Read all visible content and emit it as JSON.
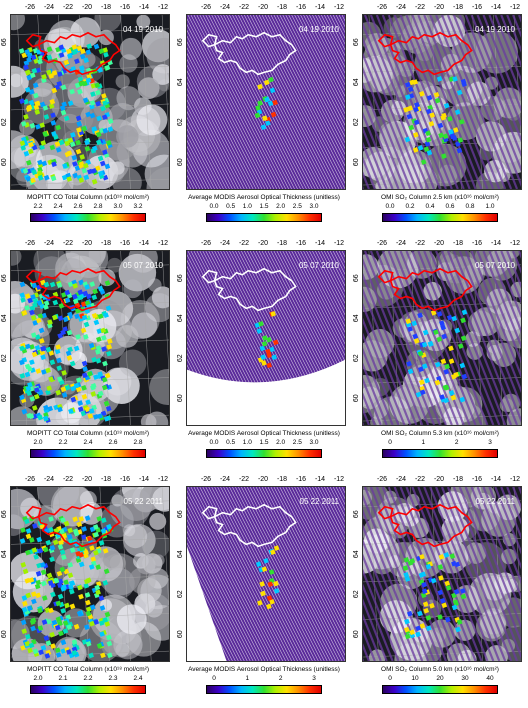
{
  "lon_ticks": [
    "-26",
    "-24",
    "-22",
    "-20",
    "-18",
    "-16",
    "-14",
    "-12"
  ],
  "lat_ticks": [
    "66",
    "64",
    "62",
    "60"
  ],
  "colors": {
    "coastline_mopitt": "#ff0000",
    "coastline_modis": "#ffffff",
    "coastline_omi": "#ff0000",
    "background_modis": "#5a2a9a",
    "background_cloud": "#c8ccd4"
  },
  "panels": [
    {
      "date": "04 19 2010",
      "product": "mopitt",
      "cb_title": "MOPITT CO Total Column (x10¹⁸ mol/cm²)",
      "cb_ticks": [
        "2.2",
        "2.4",
        "2.6",
        "2.8",
        "3.0",
        "3.2"
      ]
    },
    {
      "date": "04 19 2010",
      "product": "modis",
      "cb_title": "Average MODIS Aerosol Optical Thickness (unitless)",
      "cb_ticks": [
        "0.0",
        "0.5",
        "1.0",
        "1.5",
        "2.0",
        "2.5",
        "3.0"
      ]
    },
    {
      "date": "04 19 2010",
      "product": "omi",
      "cb_title": "OMI SO₂ Column 2.5 km (x10¹⁶ mol/cm²)",
      "cb_ticks": [
        "0.0",
        "0.2",
        "0.4",
        "0.6",
        "0.8",
        "1.0"
      ]
    },
    {
      "date": "05 07 2010",
      "product": "mopitt",
      "cb_title": "MOPITT CO Total Column (x10¹⁸ mol/cm²)",
      "cb_ticks": [
        "2.0",
        "2.2",
        "2.4",
        "2.6",
        "2.8"
      ]
    },
    {
      "date": "05 07 2010",
      "product": "modis",
      "cb_title": "Average MODIS Aerosol Optical Thickness (unitless)",
      "cb_ticks": [
        "0.0",
        "0.5",
        "1.0",
        "1.5",
        "2.0",
        "2.5",
        "3.0"
      ]
    },
    {
      "date": "05 07 2010",
      "product": "omi",
      "cb_title": "OMI SO₂ Column 5.3 km (x10¹⁶ mol/cm²)",
      "cb_ticks": [
        "0",
        "1",
        "2",
        "3"
      ]
    },
    {
      "date": "05 22 2011",
      "product": "mopitt",
      "cb_title": "MOPITT CO Total Column (x10¹⁸ mol/cm²)",
      "cb_ticks": [
        "2.0",
        "2.1",
        "2.2",
        "2.3",
        "2.4"
      ]
    },
    {
      "date": "05 22 2011",
      "product": "modis",
      "cb_title": "Average MODIS Aerosol Optical Thickness (unitless)",
      "cb_ticks": [
        "0",
        "1",
        "2",
        "3"
      ]
    },
    {
      "date": "05 22 2011",
      "product": "omi",
      "cb_title": "OMI SO₂ Column 5.0 km (x10¹⁶ mol/cm²)",
      "cb_ticks": [
        "0",
        "10",
        "20",
        "30",
        "40"
      ]
    }
  ]
}
